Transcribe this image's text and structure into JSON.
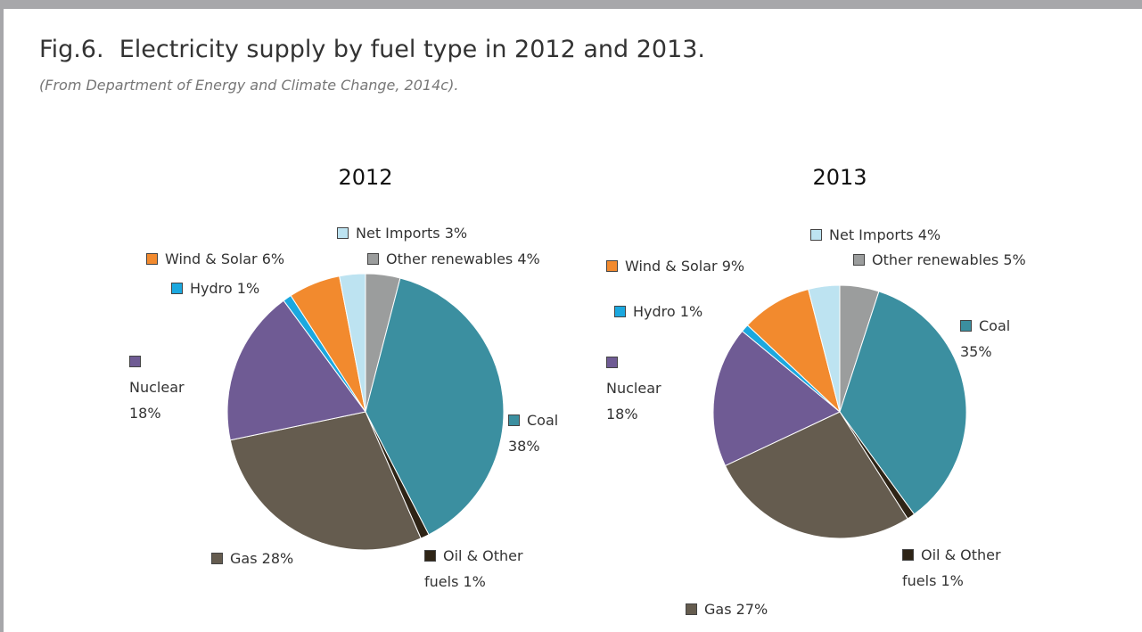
{
  "title": "Fig.6.  Electricity supply by fuel type in 2012 and 2013.",
  "subtitle": "(From Department of Energy and Climate Change, 2014c).",
  "chart_data": [
    {
      "type": "pie",
      "title": "2012",
      "categories": [
        "Other renewables",
        "Coal",
        "Oil & Other fuels",
        "Gas",
        "Nuclear",
        "Hydro",
        "Wind & Solar",
        "Net Imports"
      ],
      "values": [
        4,
        38,
        1,
        28,
        18,
        1,
        6,
        3
      ],
      "value_labels": [
        "4%",
        "38%",
        "1%",
        "28%",
        "18%",
        "1%",
        "6%",
        "3%"
      ],
      "colors": [
        "#9b9d9d",
        "#3b8fa0",
        "#2e2416",
        "#655c4f",
        "#6f5b94",
        "#1ba8df",
        "#f28a2e",
        "#bde3f1"
      ]
    },
    {
      "type": "pie",
      "title": "2013",
      "categories": [
        "Other renewables",
        "Coal",
        "Oil & Other fuels",
        "Gas",
        "Nuclear",
        "Hydro",
        "Wind & Solar",
        "Net Imports"
      ],
      "values": [
        5,
        35,
        1,
        27,
        18,
        1,
        9,
        4
      ],
      "value_labels": [
        "5%",
        "35%",
        "1%",
        "27%",
        "18%",
        "1%",
        "9%",
        "4%"
      ],
      "colors": [
        "#9b9d9d",
        "#3b8fa0",
        "#2e2416",
        "#655c4f",
        "#6f5b94",
        "#1ba8df",
        "#f28a2e",
        "#bde3f1"
      ]
    }
  ]
}
